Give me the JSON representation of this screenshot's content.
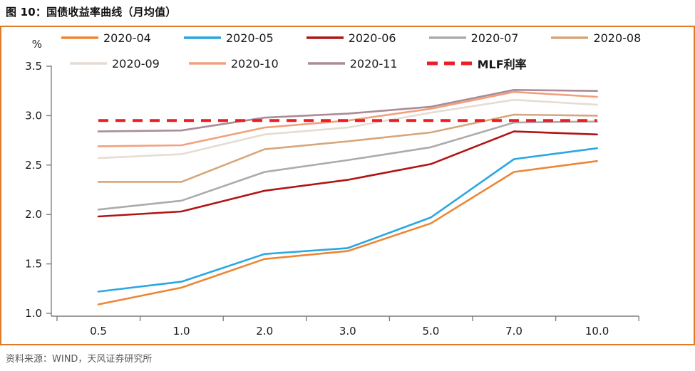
{
  "header": {
    "title": "图 10：国债收益率曲线（月均值）"
  },
  "footer": {
    "source": "资料来源：WIND，天风证券研究所"
  },
  "colors": {
    "frame_accent": "#E07B28",
    "axis": "#7F7F7F",
    "label_text": "#1a1a1a",
    "source_text": "#595959"
  },
  "chart_data": {
    "type": "line",
    "title": "国债收益率曲线（月均值）",
    "unit_label": "%",
    "xlabel": "",
    "ylabel": "%",
    "grid": false,
    "legend_position": "top",
    "categories": [
      "0.5",
      "1.0",
      "2.0",
      "3.0",
      "5.0",
      "7.0",
      "10.0"
    ],
    "ylim": [
      1.0,
      3.5
    ],
    "y_ticks": [
      "3.5",
      "3.0",
      "2.5",
      "2.0",
      "1.5",
      "1.0"
    ],
    "legend_rows": [
      [
        0,
        1,
        2,
        3,
        4
      ],
      [
        5,
        6,
        7,
        8
      ]
    ],
    "series": [
      {
        "name": "2020-04",
        "color": "#ED8633",
        "dashed": false,
        "values": [
          1.09,
          1.26,
          1.55,
          1.63,
          1.91,
          2.43,
          2.54
        ]
      },
      {
        "name": "2020-05",
        "color": "#29A7E1",
        "dashed": false,
        "values": [
          1.22,
          1.32,
          1.6,
          1.66,
          1.97,
          2.56,
          2.67
        ]
      },
      {
        "name": "2020-06",
        "color": "#B11414",
        "dashed": false,
        "values": [
          1.98,
          2.03,
          2.24,
          2.35,
          2.51,
          2.84,
          2.81
        ]
      },
      {
        "name": "2020-07",
        "color": "#ABABAB",
        "dashed": false,
        "values": [
          2.05,
          2.14,
          2.43,
          2.55,
          2.68,
          2.93,
          2.94
        ]
      },
      {
        "name": "2020-08",
        "color": "#D7A57A",
        "dashed": false,
        "values": [
          2.33,
          2.33,
          2.66,
          2.74,
          2.83,
          3.01,
          3.0
        ]
      },
      {
        "name": "2020-09",
        "color": "#E5DCD2",
        "dashed": false,
        "values": [
          2.57,
          2.61,
          2.81,
          2.88,
          3.03,
          3.16,
          3.11
        ]
      },
      {
        "name": "2020-10",
        "color": "#F1A07E",
        "dashed": false,
        "values": [
          2.69,
          2.7,
          2.88,
          2.95,
          3.07,
          3.24,
          3.19
        ]
      },
      {
        "name": "2020-11",
        "color": "#AB8B95",
        "dashed": false,
        "values": [
          2.84,
          2.85,
          2.98,
          3.02,
          3.09,
          3.26,
          3.25
        ]
      },
      {
        "name": "MLF利率",
        "color": "#ED1C24",
        "dashed": true,
        "values": [
          2.95,
          2.95,
          2.95,
          2.95,
          2.95,
          2.95,
          2.95
        ]
      }
    ]
  }
}
